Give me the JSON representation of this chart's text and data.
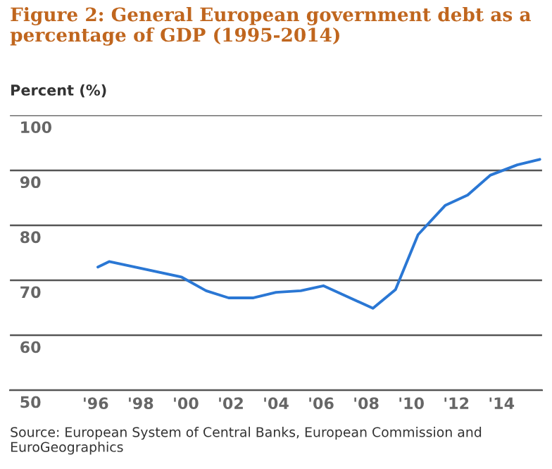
{
  "chart_data": {
    "type": "line",
    "title": "Figure 2: General European government debt as a\npercentage of GDP (1995-2014)",
    "ylabel": "Percent (%)",
    "x": [
      1996.1,
      1996.6,
      1999.8,
      2000.9,
      2001.9,
      2003.0,
      2004.0,
      2005.1,
      2006.1,
      2008.3,
      2009.3,
      2010.3,
      2011.5,
      2012.5,
      2013.5,
      2014.7,
      2015.7
    ],
    "series": [
      {
        "color": "#2a77d4",
        "values": [
          72.4,
          73.4,
          70.6,
          68.1,
          66.8,
          66.8,
          67.8,
          68.1,
          69.0,
          64.9,
          68.3,
          78.3,
          83.6,
          85.5,
          89.1,
          91.0,
          92.0
        ]
      }
    ],
    "xlim": [
      1992.2,
      2015.8
    ],
    "xticks": [
      {
        "value": 1996,
        "label": "'96"
      },
      {
        "value": 1998,
        "label": "'98"
      },
      {
        "value": 2000,
        "label": "'00"
      },
      {
        "value": 2002,
        "label": "'02"
      },
      {
        "value": 2004,
        "label": "'04"
      },
      {
        "value": 2006,
        "label": "'06"
      },
      {
        "value": 2008,
        "label": "'08"
      },
      {
        "value": 2010,
        "label": "'10"
      },
      {
        "value": 2012,
        "label": "'12"
      },
      {
        "value": 2014,
        "label": "'14"
      }
    ],
    "ylim": [
      50,
      100
    ],
    "yticks": [
      50,
      60,
      70,
      80,
      90,
      100
    ],
    "grid": "y",
    "annotations": [
      "Source: European System of Central Banks, European Commission and EuroGeographics"
    ]
  }
}
